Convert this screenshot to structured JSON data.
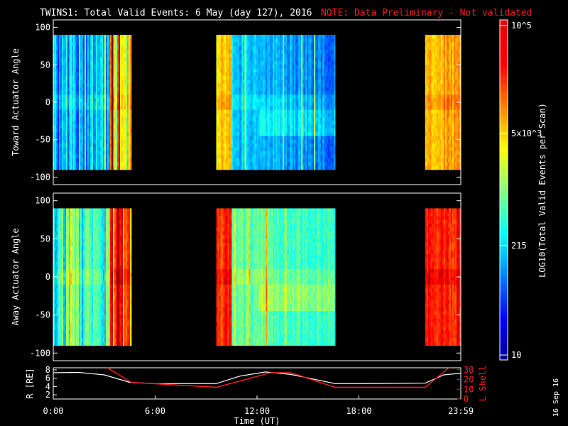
{
  "title": "TWINS1: Total Valid Events:  6 May (day 127), 2016",
  "note": "NOTE: Data Preliminary - Not validated",
  "date_stamp": "16 Sep 16",
  "colors": {
    "background": "#000000",
    "note": "#ff1a1a",
    "lshell": "#ff2020",
    "radius": "#ffffff"
  },
  "chart_data": [
    {
      "type": "heatmap",
      "name": "toward",
      "ylabel": "Toward Actuator Angle",
      "ylim": [
        -110,
        110
      ],
      "data_range": [
        -90,
        90
      ],
      "yticks": [
        100,
        50,
        0,
        -50,
        -100
      ],
      "xlim": [
        0,
        24
      ],
      "segments": [
        {
          "start": 0.0,
          "end": 4.6,
          "base": 0.3,
          "trend": "mixed_to_yellow"
        },
        {
          "start": 9.6,
          "end": 16.6,
          "base": 0.38,
          "trend": "yellow_to_blue"
        },
        {
          "start": 21.9,
          "end": 24.0,
          "base": 0.7,
          "trend": "yellow"
        }
      ]
    },
    {
      "type": "heatmap",
      "name": "away",
      "ylabel": "Away Actuator Angle",
      "ylim": [
        -110,
        110
      ],
      "data_range": [
        -90,
        90
      ],
      "yticks": [
        100,
        50,
        0,
        -50,
        -100
      ],
      "xlim": [
        0,
        24
      ],
      "segments": [
        {
          "start": 0.0,
          "end": 4.6,
          "base": 0.42,
          "trend": "mixed_to_orange"
        },
        {
          "start": 9.6,
          "end": 16.6,
          "base": 0.55,
          "trend": "orange_to_blue"
        },
        {
          "start": 21.9,
          "end": 24.0,
          "base": 0.85,
          "trend": "orange"
        }
      ]
    },
    {
      "type": "line",
      "name": "orbit",
      "ylabel_left": "R [RE]",
      "ylabel_right": "L Shell",
      "ylim_left": [
        1,
        8.5
      ],
      "ylim_right": [
        0,
        32
      ],
      "yticks_left": [
        "8",
        "6",
        "4",
        "2"
      ],
      "yticks_right": [
        "30",
        "20",
        "10",
        "0"
      ],
      "xlabel": "Time (UT)",
      "xlim": [
        0,
        24
      ],
      "xticks": [
        "0:00",
        "6:00",
        "12:00",
        "18:00",
        "23:59"
      ],
      "series": [
        {
          "name": "R",
          "axis": "left",
          "x": [
            0,
            1.5,
            3,
            4.5,
            6,
            9.6,
            11,
            12.5,
            14,
            16.6,
            18,
            21.9,
            23,
            24
          ],
          "values": [
            7.3,
            7.4,
            6.8,
            5.0,
            4.7,
            4.7,
            6.5,
            7.5,
            6.9,
            4.7,
            4.7,
            4.8,
            6.8,
            7.2
          ]
        },
        {
          "name": "L Shell",
          "axis": "right",
          "x": [
            3.2,
            4.6,
            9.6,
            12.8,
            14.0,
            16.6,
            21.9,
            23.3
          ],
          "values": [
            32,
            17,
            12,
            27,
            27,
            12,
            12,
            32
          ]
        }
      ]
    },
    {
      "type": "colorbar",
      "label": "LOG10(Total Valid Events per Scan)",
      "ticks": [
        "10^5",
        "5x10^3",
        "215",
        "10"
      ]
    }
  ]
}
